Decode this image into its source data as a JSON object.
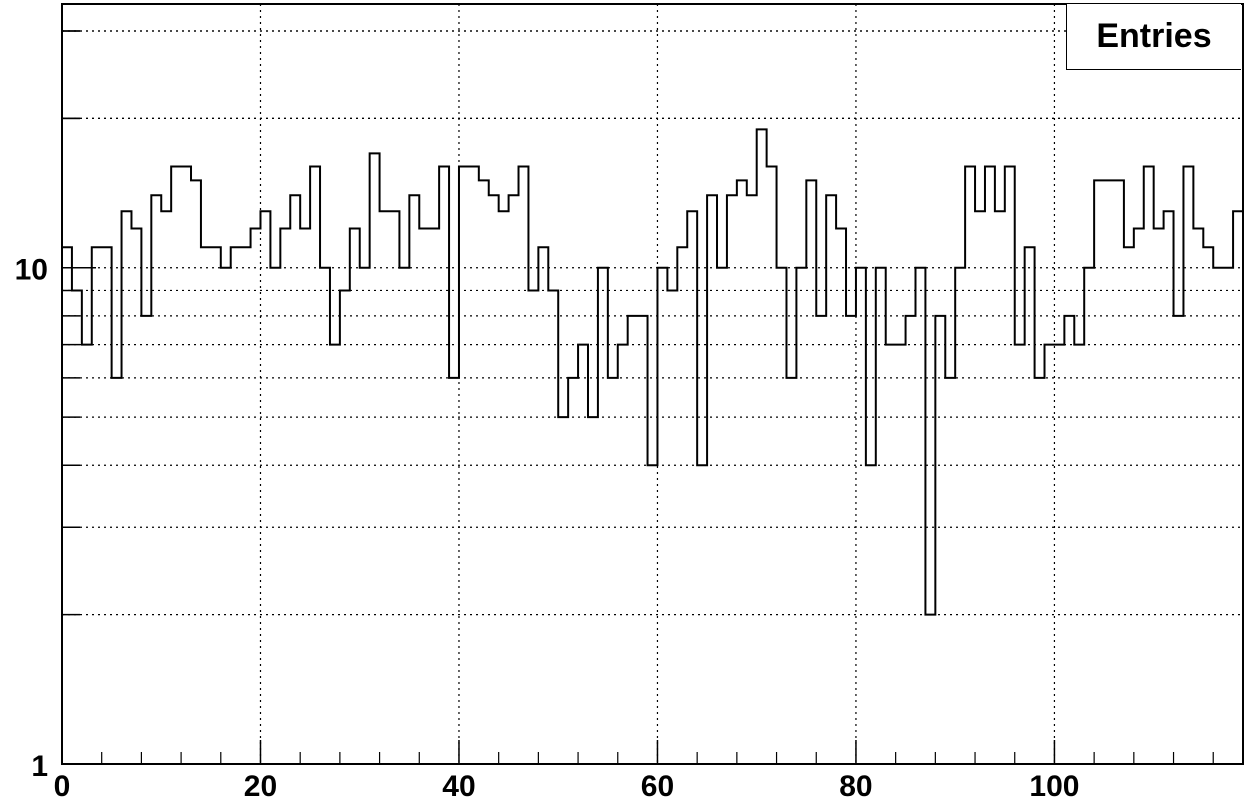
{
  "chart_data": {
    "type": "histogram",
    "title": "",
    "xlabel": "",
    "ylabel": "",
    "x_scale": "linear",
    "y_scale": "log",
    "xlim": [
      0,
      119
    ],
    "ylim": [
      1,
      34
    ],
    "grid": true,
    "bin_width": 1,
    "x_tick_labels": [
      "0",
      "20",
      "40",
      "60",
      "80",
      "100"
    ],
    "x_tick_values": [
      0,
      20,
      40,
      60,
      80,
      100
    ],
    "y_tick_labels": [
      "1",
      "10"
    ],
    "y_tick_values": [
      1,
      10
    ],
    "values": [
      11,
      9,
      7,
      11,
      11,
      6,
      13,
      12,
      8,
      14,
      13,
      16,
      16,
      15,
      11,
      11,
      10,
      11,
      11,
      12,
      13,
      10,
      12,
      14,
      12,
      16,
      10,
      7,
      9,
      12,
      10,
      17,
      13,
      13,
      10,
      14,
      12,
      12,
      16,
      6,
      16,
      16,
      15,
      14,
      13,
      14,
      16,
      9,
      11,
      9,
      5,
      6,
      7,
      5,
      10,
      6,
      7,
      8,
      8,
      4,
      10,
      9,
      11,
      13,
      4,
      14,
      10,
      14,
      15,
      14,
      19,
      16,
      10,
      6,
      10,
      15,
      8,
      14,
      12,
      8,
      10,
      4,
      10,
      7,
      7,
      8,
      10,
      2,
      8,
      6,
      10,
      16,
      13,
      16,
      13,
      16,
      7,
      11,
      6,
      7,
      7,
      8,
      7,
      10,
      15,
      15,
      15,
      11,
      12,
      16,
      12,
      13,
      8,
      16,
      12,
      11,
      10,
      10,
      13
    ]
  },
  "stats_box": {
    "label": "Entries"
  }
}
